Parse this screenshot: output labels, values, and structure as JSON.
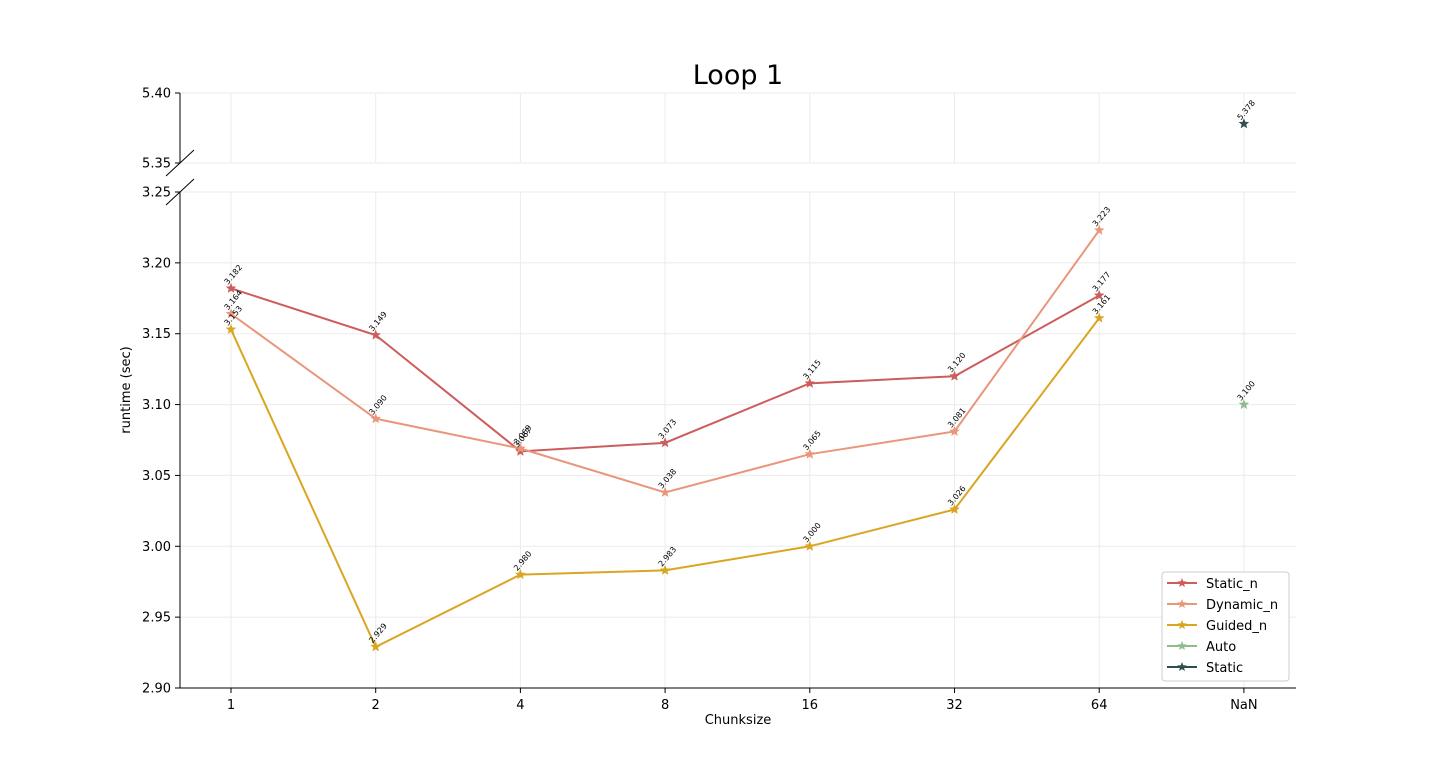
{
  "chart_data": {
    "type": "line",
    "title": "Loop 1",
    "xlabel": "Chunksize",
    "ylabel": "runtime (sec)",
    "categories": [
      "1",
      "2",
      "4",
      "8",
      "16",
      "32",
      "64",
      "NaN"
    ],
    "y_axis_lower": {
      "range": [
        2.9,
        3.25
      ],
      "ticks": [
        "2.90",
        "2.95",
        "3.00",
        "3.05",
        "3.10",
        "3.15",
        "3.20",
        "3.25"
      ]
    },
    "y_axis_upper": {
      "range": [
        5.35,
        5.4
      ],
      "ticks": [
        "5.35",
        "5.40"
      ]
    },
    "broken_axis": true,
    "grid": true,
    "legend_position": "bottom-right",
    "series": [
      {
        "name": "Static_n",
        "color": "#cd5c5c",
        "x": [
          "1",
          "2",
          "4",
          "8",
          "16",
          "32",
          "64"
        ],
        "values": [
          3.182,
          3.149,
          3.067,
          3.073,
          3.115,
          3.12,
          3.177
        ],
        "labels": [
          "3.182",
          "3.149",
          "3.067",
          "3.073",
          "3.115",
          "3.120",
          "3.177"
        ]
      },
      {
        "name": "Dynamic_n",
        "color": "#e9967a",
        "x": [
          "1",
          "2",
          "4",
          "8",
          "16",
          "32",
          "64"
        ],
        "values": [
          3.164,
          3.09,
          3.069,
          3.038,
          3.065,
          3.081,
          3.223
        ],
        "labels": [
          "3.164",
          "3.090",
          "3.069",
          "3.038",
          "3.065",
          "3.081",
          "3.223"
        ]
      },
      {
        "name": "Guided_n",
        "color": "#daa520",
        "x": [
          "1",
          "2",
          "4",
          "8",
          "16",
          "32",
          "64"
        ],
        "values": [
          3.153,
          2.929,
          2.98,
          2.983,
          3.0,
          3.026,
          3.161
        ],
        "labels": [
          "3.153",
          "2.929",
          "2.980",
          "2.983",
          "3.000",
          "3.026",
          "3.161"
        ]
      },
      {
        "name": "Auto",
        "color": "#8fbc8f",
        "x": [
          "NaN"
        ],
        "values": [
          3.1
        ],
        "labels": [
          "3.100"
        ]
      },
      {
        "name": "Static",
        "color": "#2f4f4f",
        "x": [
          "NaN"
        ],
        "values": [
          5.378
        ],
        "labels": [
          "5.378"
        ]
      }
    ]
  }
}
